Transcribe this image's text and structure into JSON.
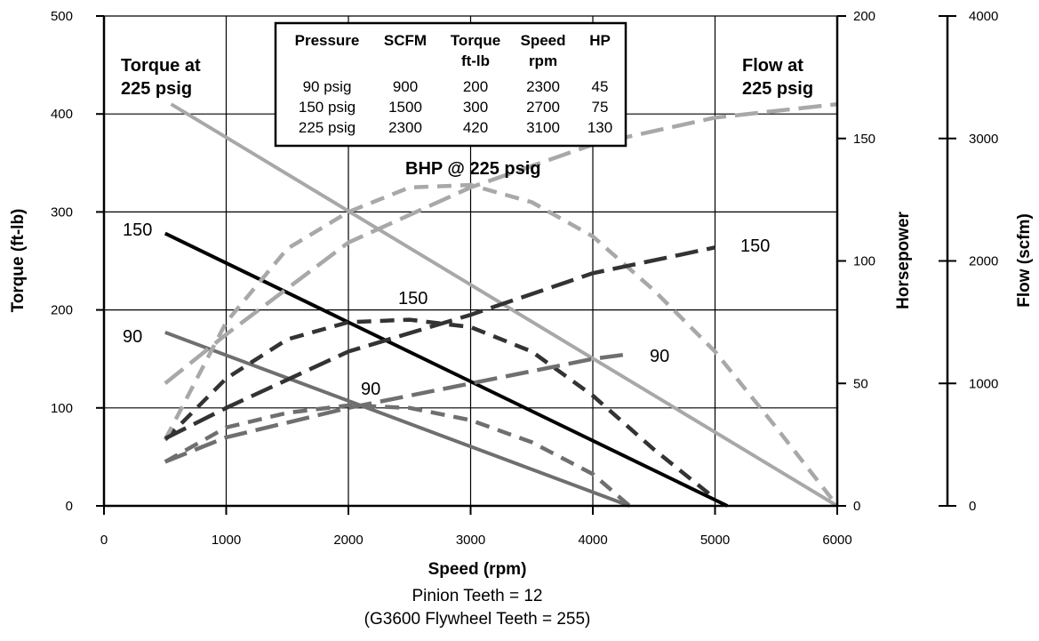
{
  "chart_data": {
    "type": "line",
    "title": "",
    "xlabel": "Speed (rpm)",
    "ylabel_left": "Torque (ft-lb)",
    "ylabel_right_1": "Horsepower",
    "ylabel_right_2": "Flow (scfm)",
    "xlim": [
      0,
      6000
    ],
    "ylim_torque": [
      0,
      500
    ],
    "ylim_horsepower": [
      0,
      200
    ],
    "ylim_flow": [
      0,
      4000
    ],
    "x_ticks": [
      0,
      1000,
      2000,
      3000,
      4000,
      5000,
      6000
    ],
    "torque_ticks": [
      0,
      100,
      200,
      300,
      400,
      500
    ],
    "horsepower_ticks": [
      0,
      50,
      100,
      150,
      200
    ],
    "flow_ticks": [
      0,
      1000,
      2000,
      3000,
      4000
    ],
    "grid": true,
    "series": [
      {
        "label": "90",
        "group": "torque",
        "axis": "torque",
        "style": "solid",
        "color": "#6f6f6f",
        "points": [
          [
            500,
            177
          ],
          [
            4300,
            0
          ]
        ]
      },
      {
        "label": "150",
        "group": "torque",
        "axis": "torque",
        "style": "solid",
        "color": "#000000",
        "points": [
          [
            500,
            278
          ],
          [
            5100,
            0
          ]
        ]
      },
      {
        "label": "Torque at 225 psig",
        "group": "torque",
        "axis": "torque",
        "style": "solid",
        "color": "#a8a8a8",
        "points": [
          [
            550,
            410
          ],
          [
            6000,
            0
          ]
        ]
      },
      {
        "label": "90",
        "group": "bhp",
        "axis": "horsepower",
        "style": "dashed",
        "color": "#6f6f6f",
        "points": [
          [
            500,
            18
          ],
          [
            1000,
            32
          ],
          [
            1500,
            38
          ],
          [
            2000,
            41
          ],
          [
            2500,
            40
          ],
          [
            3000,
            35
          ],
          [
            3500,
            26
          ],
          [
            4000,
            13
          ],
          [
            4300,
            0
          ]
        ]
      },
      {
        "label": "150",
        "group": "bhp",
        "axis": "horsepower",
        "style": "dashed",
        "color": "#333333",
        "points": [
          [
            500,
            27
          ],
          [
            1000,
            52
          ],
          [
            1500,
            68
          ],
          [
            2000,
            75
          ],
          [
            2500,
            76
          ],
          [
            3000,
            73
          ],
          [
            3500,
            63
          ],
          [
            4000,
            45
          ],
          [
            4500,
            23
          ],
          [
            5000,
            3
          ]
        ]
      },
      {
        "label": "BHP @ 225 psig",
        "group": "bhp",
        "axis": "horsepower",
        "style": "dashed",
        "color": "#a8a8a8",
        "points": [
          [
            500,
            27
          ],
          [
            1000,
            75
          ],
          [
            1500,
            105
          ],
          [
            2000,
            120
          ],
          [
            2500,
            130
          ],
          [
            3000,
            131
          ],
          [
            3500,
            124
          ],
          [
            4000,
            110
          ],
          [
            4500,
            88
          ],
          [
            5000,
            63
          ],
          [
            5500,
            32
          ],
          [
            6000,
            0
          ]
        ]
      },
      {
        "label": "90",
        "group": "flow",
        "axis": "flow",
        "style": "long-dashed",
        "color": "#6f6f6f",
        "points": [
          [
            500,
            360
          ],
          [
            1000,
            560
          ],
          [
            2000,
            800
          ],
          [
            3000,
            1000
          ],
          [
            4000,
            1200
          ],
          [
            4300,
            1240
          ]
        ]
      },
      {
        "label": "150",
        "group": "flow",
        "axis": "flow",
        "style": "long-dashed",
        "color": "#333333",
        "points": [
          [
            500,
            550
          ],
          [
            1000,
            800
          ],
          [
            2000,
            1260
          ],
          [
            3000,
            1560
          ],
          [
            4000,
            1900
          ],
          [
            5000,
            2110
          ]
        ]
      },
      {
        "label": "Flow at 225 psig",
        "group": "flow",
        "axis": "flow",
        "style": "long-dashed",
        "color": "#a8a8a8",
        "points": [
          [
            500,
            1000
          ],
          [
            1000,
            1400
          ],
          [
            2000,
            2150
          ],
          [
            3000,
            2600
          ],
          [
            4000,
            2950
          ],
          [
            5000,
            3170
          ],
          [
            6000,
            3280
          ]
        ]
      }
    ],
    "annotations": {
      "torque_225": [
        "Torque at",
        "225 psig"
      ],
      "flow_225": [
        "Flow at",
        "225 psig"
      ],
      "bhp_225": "BHP @ 225 psig",
      "torque_150": "150",
      "torque_90": "90",
      "bhp_150": "150",
      "bhp_90": "90",
      "flow_150": "150",
      "flow_90": "90"
    },
    "table": {
      "headers": [
        [
          "Pressure",
          ""
        ],
        [
          "SCFM",
          ""
        ],
        [
          "Torque",
          "ft-lb"
        ],
        [
          "Speed",
          "rpm"
        ],
        [
          "HP",
          ""
        ]
      ],
      "rows": [
        [
          "90 psig",
          "900",
          "200",
          "2300",
          "45"
        ],
        [
          "150 psig",
          "1500",
          "300",
          "2700",
          "75"
        ],
        [
          "225 psig",
          "2300",
          "420",
          "3100",
          "130"
        ]
      ]
    },
    "caption": [
      "Pinion Teeth = 12",
      "(G3600 Flywheel Teeth = 255)"
    ]
  }
}
